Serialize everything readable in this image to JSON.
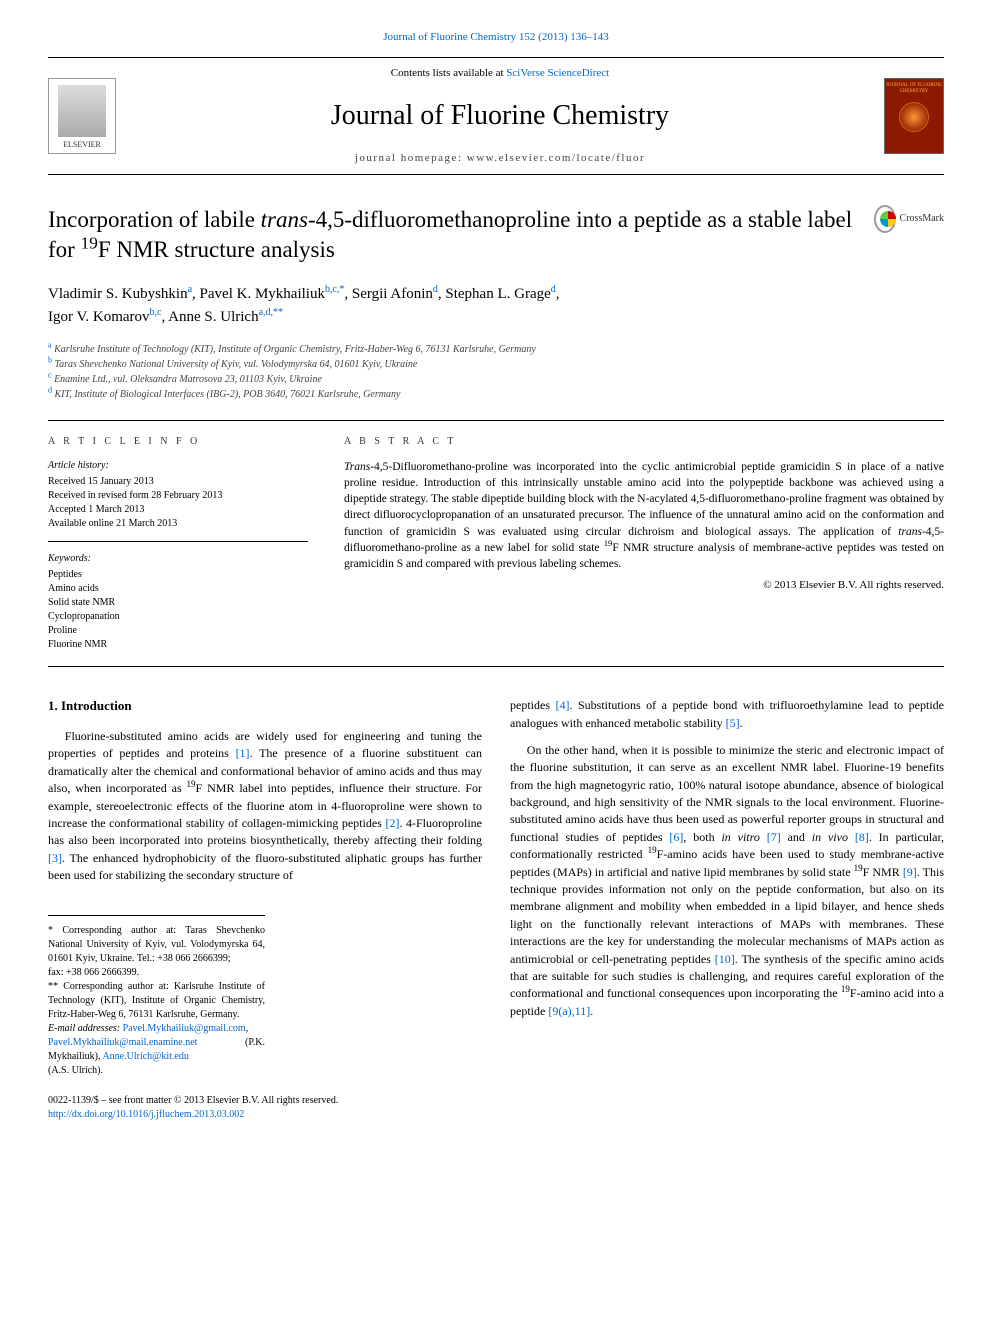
{
  "journal_link_top": "Journal of Fluorine Chemistry 152 (2013) 136–143",
  "header": {
    "contents_prefix": "Contents lists available at ",
    "contents_link": "SciVerse ScienceDirect",
    "journal_title": "Journal of Fluorine Chemistry",
    "homepage_prefix": "journal homepage: ",
    "homepage_url": "www.elsevier.com/locate/fluor",
    "elsevier_label": "ELSEVIER",
    "cover_text": "JOURNAL OF FLUORINE CHEMISTRY"
  },
  "crossmark_label": "CrossMark",
  "title_parts": {
    "p1": "Incorporation of labile ",
    "p2_italic": "trans",
    "p3": "-4,5-difluoromethanoproline into a peptide as a stable label for ",
    "p4_sup": "19",
    "p5": "F NMR structure analysis"
  },
  "authors": [
    {
      "name": "Vladimir S. Kubyshkin",
      "sup": "a"
    },
    {
      "name": "Pavel K. Mykhailiuk",
      "sup": "b,c,*"
    },
    {
      "name": "Sergii Afonin",
      "sup": "d"
    },
    {
      "name": "Stephan L. Grage",
      "sup": "d"
    },
    {
      "name": "Igor V. Komarov",
      "sup": "b,c"
    },
    {
      "name": "Anne S. Ulrich",
      "sup": "a,d,**"
    }
  ],
  "affiliations": [
    {
      "sup": "a",
      "text": "Karlsruhe Institute of Technology (KIT), Institute of Organic Chemistry, Fritz-Haber-Weg 6, 76131 Karlsruhe, Germany"
    },
    {
      "sup": "b",
      "text": "Taras Shevchenko National University of Kyiv, vul. Volodymyrska 64, 01601 Kyiv, Ukraine"
    },
    {
      "sup": "c",
      "text": "Enamine Ltd., vul. Oleksandra Matrosova 23, 01103 Kyiv, Ukraine"
    },
    {
      "sup": "d",
      "text": "KIT, Institute of Biological Interfaces (IBG-2), POB 3640, 76021 Karlsruhe, Germany"
    }
  ],
  "info_heading": "A R T I C L E  I N F O",
  "history": {
    "label": "Article history:",
    "items": [
      "Received 15 January 2013",
      "Received in revised form 28 February 2013",
      "Accepted 1 March 2013",
      "Available online 21 March 2013"
    ]
  },
  "keywords": {
    "label": "Keywords:",
    "items": [
      "Peptides",
      "Amino acids",
      "Solid state NMR",
      "Cyclopropanation",
      "Proline",
      "Fluorine NMR"
    ]
  },
  "abstract_heading": "A B S T R A C T",
  "abstract_text_parts": {
    "p1_italic": "Trans",
    "p2": "-4,5-Difluoromethano-proline was incorporated into the cyclic antimicrobial peptide gramicidin S in place of a native proline residue. Introduction of this intrinsically unstable amino acid into the polypeptide backbone was achieved using a dipeptide strategy. The stable dipeptide building block with the N-acylated 4,5-difluoromethano-proline fragment was obtained by direct difluorocyclopropanation of an unsaturated precursor. The influence of the unnatural amino acid on the conformation and function of gramicidin S was evaluated using circular dichroism and biological assays. The application of ",
    "p3_italic": "trans",
    "p4": "-4,5-difluoromethano-proline as a new label for solid state ",
    "p5_sup": "19",
    "p6": "F NMR structure analysis of membrane-active peptides was tested on gramicidin S and compared with previous labeling schemes."
  },
  "abstract_copyright": "© 2013 Elsevier B.V. All rights reserved.",
  "section1_title": "1. Introduction",
  "body": {
    "col1_p1a": "Fluorine-substituted amino acids are widely used for engineering and tuning the properties of peptides and proteins ",
    "ref1": "[1]",
    "col1_p1b": ". The presence of a fluorine substituent can dramatically alter the chemical and conformational behavior of amino acids and thus may also, when incorporated as ",
    "sup19_1": "19",
    "col1_p1c": "F NMR label into peptides, influence their structure. For example, stereoelectronic effects of the fluorine atom in 4-fluoroproline were shown to increase the conformational stability of collagen-mimicking peptides ",
    "ref2": "[2]",
    "col1_p1d": ". 4-Fluoroproline has also been incorporated into proteins biosynthetically, thereby affecting their folding ",
    "ref3": "[3]",
    "col1_p1e": ". The enhanced hydrophobicity of the fluoro-substituted aliphatic groups has further been used for stabilizing the secondary structure of",
    "col2_p1a": "peptides ",
    "ref4": "[4]",
    "col2_p1b": ". Substitutions of a peptide bond with trifluoroethylamine lead to peptide analogues with enhanced metabolic stability ",
    "ref5": "[5]",
    "col2_p1c": ".",
    "col2_p2a": "On the other hand, when it is possible to minimize the steric and electronic impact of the fluorine substitution, it can serve as an excellent NMR label. Fluorine-19 benefits from the high magnetogyric ratio, 100% natural isotope abundance, absence of biological background, and high sensitivity of the NMR signals to the local environment. Fluorine-substituted amino acids have thus been used as powerful reporter groups in structural and functional studies of peptides ",
    "ref6": "[6]",
    "col2_p2b": ", both ",
    "invitro": "in vitro",
    "sp1": " ",
    "ref7": "[7]",
    "col2_p2c": " and ",
    "invivo": "in vivo",
    "sp2": " ",
    "ref8": "[8]",
    "col2_p2d": ". In particular, conformationally restricted ",
    "sup19_2": "19",
    "col2_p2e": "F-amino acids have been used to study membrane-active peptides (MAPs) in artificial and native lipid membranes by solid state ",
    "sup19_3": "19",
    "col2_p2f": "F NMR ",
    "ref9": "[9]",
    "col2_p2g": ". This technique provides information not only on the peptide conformation, but also on its membrane alignment and mobility when embedded in a lipid bilayer, and hence sheds light on the functionally relevant interactions of MAPs with membranes. These interactions are the key for understanding the molecular mechanisms of MAPs action as antimicrobial or cell-penetrating peptides ",
    "ref10": "[10]",
    "col2_p2h": ". The synthesis of the specific amino acids that are suitable for such studies is challenging, and requires careful exploration of the conformational and functional consequences upon incorporating the ",
    "sup19_4": "19",
    "col2_p2i": "F-amino acid into a peptide ",
    "ref9a11": "[9(a),11]",
    "col2_p2j": "."
  },
  "footnotes": {
    "fn1": "* Corresponding author at: Taras Shevchenko National University of Kyiv, vul. Volodymyrska 64, 01601 Kyiv, Ukraine. Tel.: +38 066 2666399;",
    "fn1_fax": "fax: +38 066 2666399.",
    "fn2": "** Corresponding author at: Karlsruhe Institute of Technology (KIT), Institute of Organic Chemistry, Fritz-Haber-Weg 6, 76131 Karlsruhe, Germany.",
    "email_label": "E-mail addresses: ",
    "email1": "Pavel.Mykhailiuk@gmail.com",
    "email_sep1": ",",
    "email2": "Pavel.Mykhailiuk@mail.enamine.net",
    "email2_who": " (P.K. Mykhailiuk), ",
    "email3": "Anne.Ulrich@kit.edu",
    "email3_who": "(A.S. Ulrich)."
  },
  "bottom": {
    "matter": "0022-1139/$ – see front matter © 2013 Elsevier B.V. All rights reserved.",
    "doi": "http://dx.doi.org/10.1016/j.jfluchem.2013.03.002"
  },
  "colors": {
    "link": "#0066cc",
    "text": "#000000",
    "cover_bg": "#8b1a00",
    "cover_accent": "#ff9933"
  }
}
